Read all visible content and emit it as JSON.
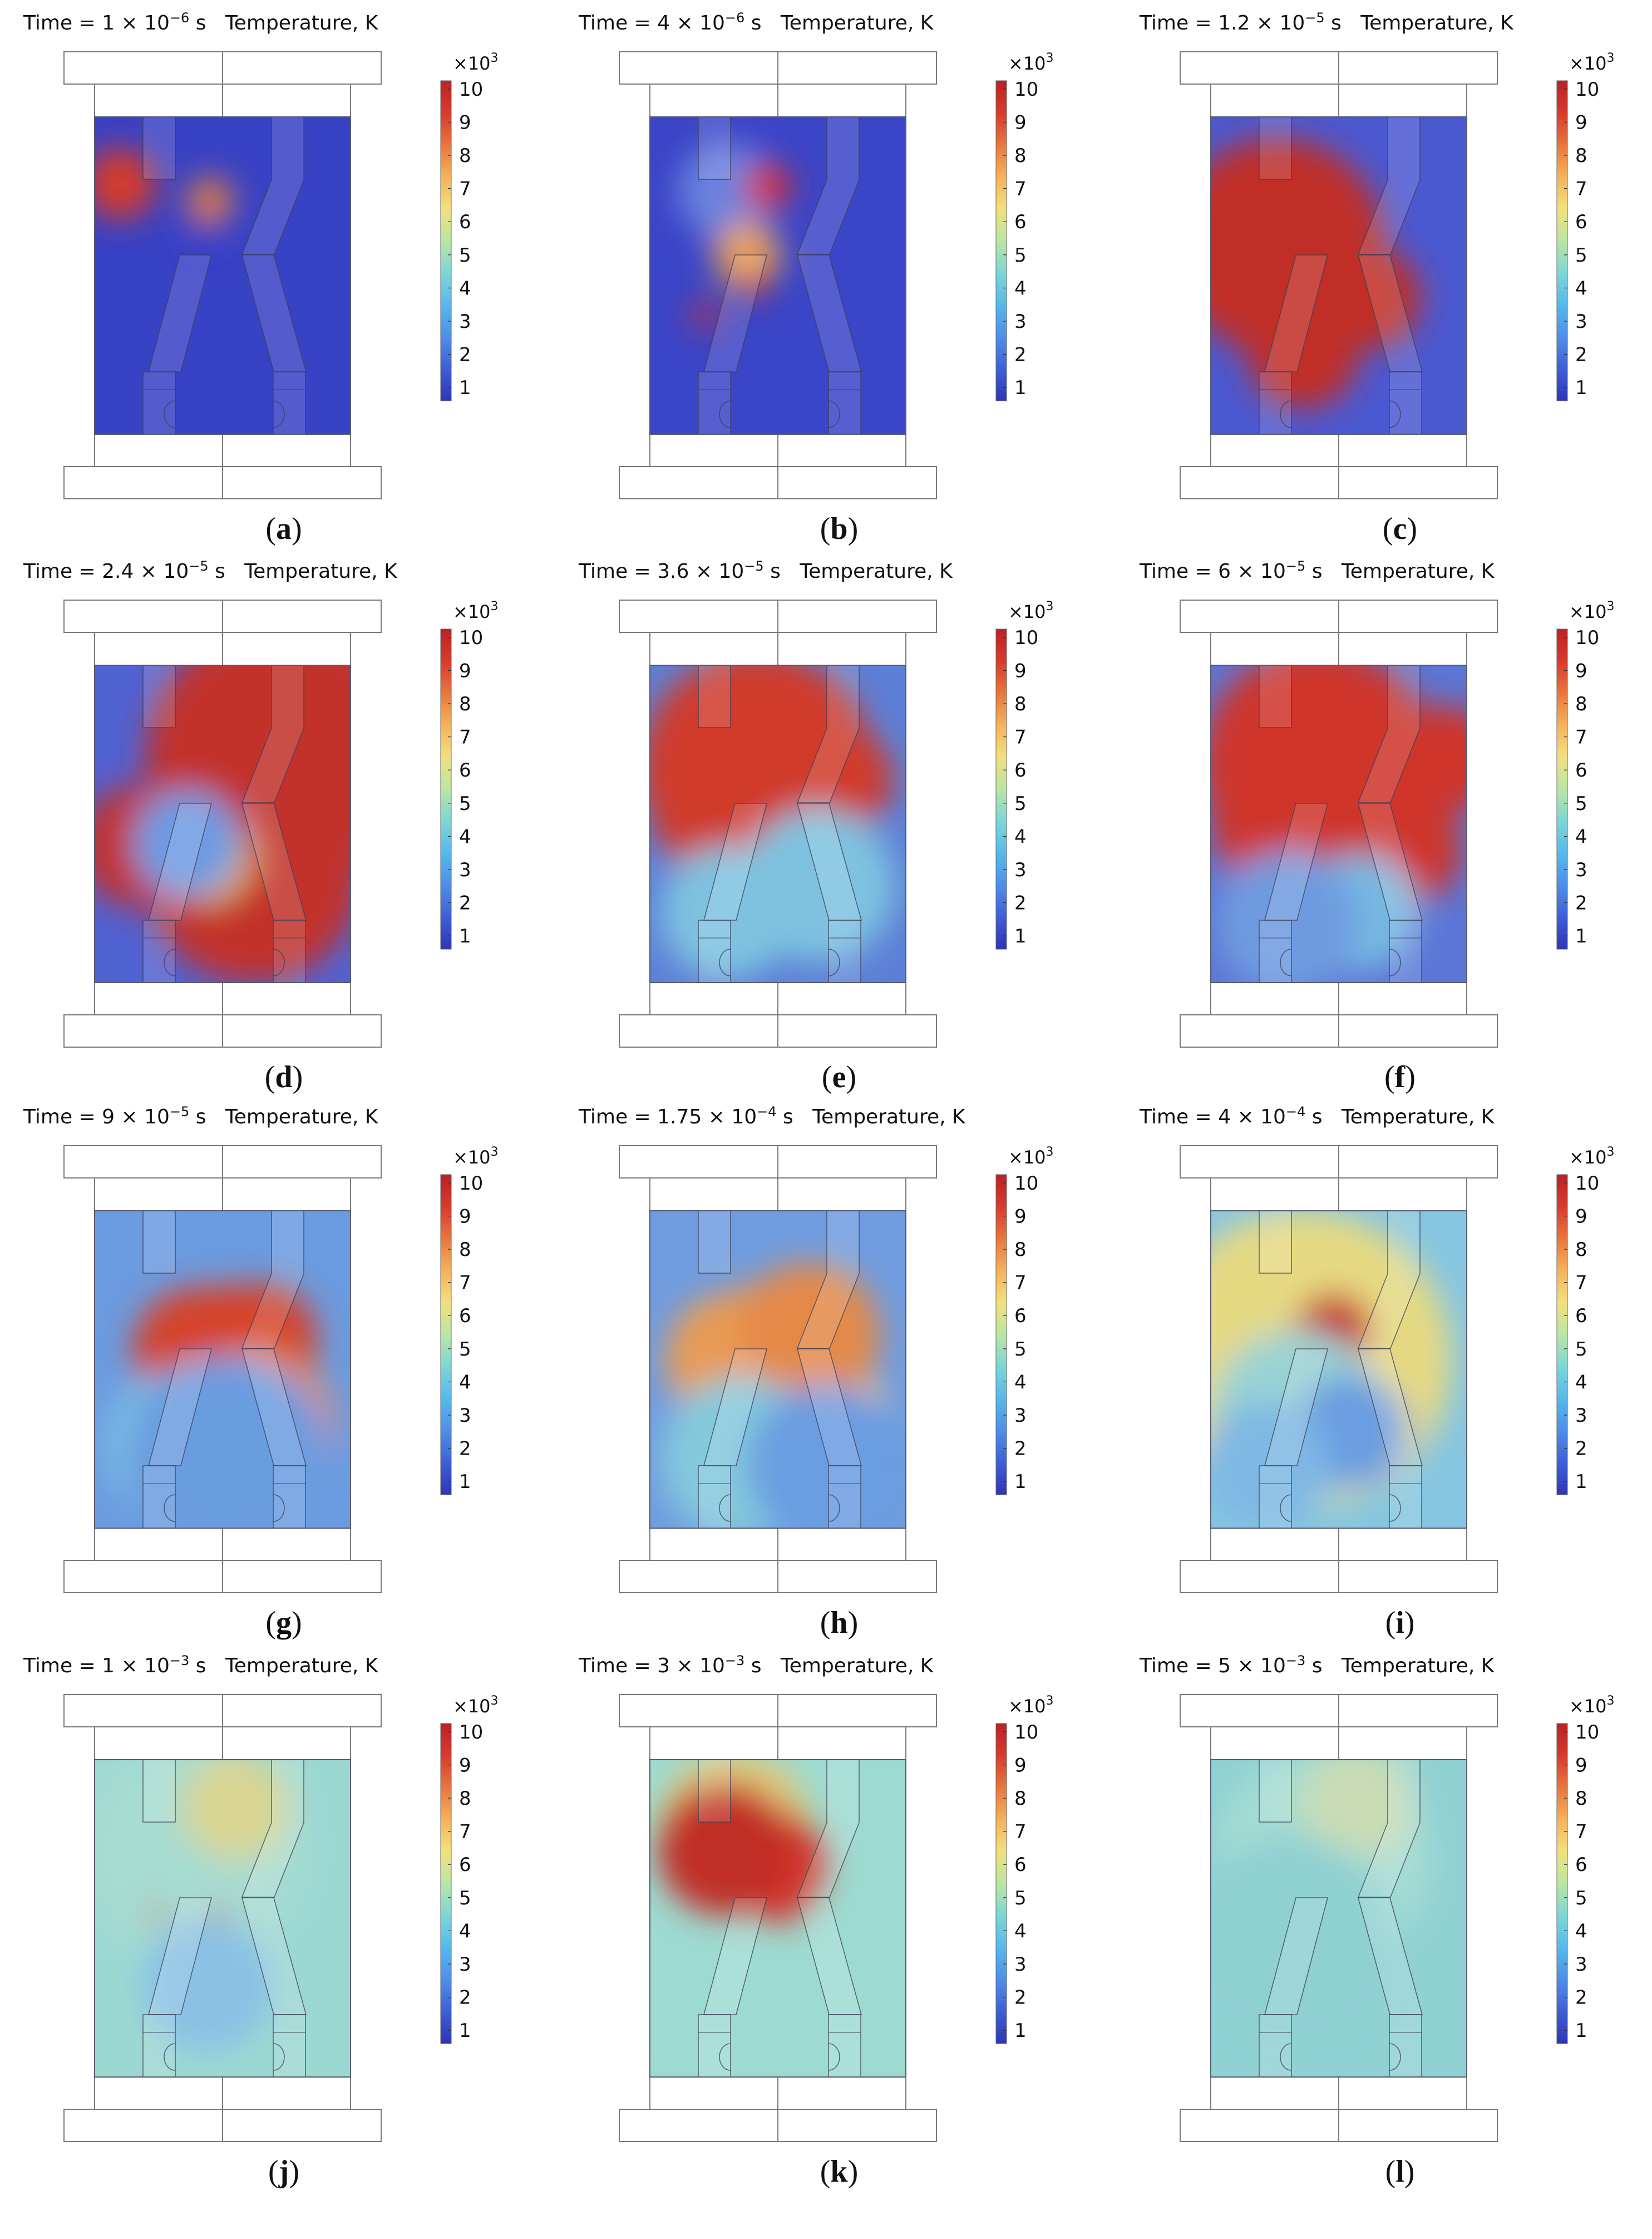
{
  "panels": [
    {
      "time_prefix": "Time = ",
      "time_mantissa": "1 × 10",
      "time_exponent": "−6",
      "time_unit": " s",
      "quantity": "Temperature, K",
      "label": "a",
      "pattern": [
        [
          10,
          27,
          14,
          "#d63a2c"
        ],
        [
          45,
          34,
          9,
          "#e37a45"
        ],
        [
          42,
          49,
          5,
          "#2c36c6"
        ]
      ]
    },
    {
      "time_prefix": "Time = ",
      "time_mantissa": "4 × 10",
      "time_exponent": "−6",
      "time_unit": " s",
      "quantity": "Temperature, K",
      "label": "b",
      "pattern": [
        [
          30,
          30,
          19,
          "#6b82de"
        ],
        [
          38,
          56,
          13,
          "#e8a156"
        ],
        [
          46,
          28,
          9,
          "#d92f26"
        ],
        [
          40,
          67,
          6,
          "#d92f26"
        ],
        [
          22,
          80,
          5,
          "#d92f26"
        ]
      ]
    },
    {
      "time_prefix": "Time = ",
      "time_mantissa": "1.2 × 10",
      "time_exponent": "−5",
      "time_unit": " s",
      "quantity": "Temperature, K",
      "label": "c",
      "pattern": [
        [
          26,
          52,
          42,
          "#c12d28"
        ],
        [
          36,
          95,
          22,
          "#c12d28"
        ],
        [
          62,
          73,
          20,
          "#c12d28"
        ],
        [
          24,
          84,
          14,
          "#c12d28"
        ]
      ]
    },
    {
      "time_prefix": "Time = ",
      "time_mantissa": "2.4 × 10",
      "time_exponent": "−5",
      "time_unit": " s",
      "quantity": "Temperature, K",
      "label": "d",
      "pattern": [
        [
          72,
          37,
          52,
          "#c2302a"
        ],
        [
          62,
          85,
          42,
          "#c2302a"
        ],
        [
          36,
          69,
          26,
          "#c2302a"
        ],
        [
          18,
          73,
          24,
          "#c2302a"
        ],
        [
          44,
          78,
          18,
          "#e3b05a"
        ],
        [
          36,
          72,
          21,
          "#6d9be2"
        ]
      ]
    },
    {
      "time_prefix": "Time = ",
      "time_mantissa": "3.6 × 10",
      "time_exponent": "−5",
      "time_unit": " s",
      "quantity": "Temperature, K",
      "label": "e",
      "pattern": [
        [
          42,
          42,
          46,
          "#d03a2c"
        ],
        [
          30,
          56,
          30,
          "#d03a2c"
        ],
        [
          75,
          46,
          20,
          "#d03a2c"
        ],
        [
          38,
          78,
          23,
          "#d03a2c"
        ],
        [
          30,
          100,
          26,
          "#7ec2e0"
        ],
        [
          66,
          89,
          30,
          "#7ec2e0"
        ]
      ]
    },
    {
      "time_prefix": "Time = ",
      "time_mantissa": "6 × 10",
      "time_exponent": "−5",
      "time_unit": " s",
      "quantity": "Temperature, K",
      "label": "f",
      "pattern": [
        [
          42,
          40,
          46,
          "#cf3629"
        ],
        [
          32,
          62,
          32,
          "#cf3629"
        ],
        [
          92,
          38,
          21,
          "#cf3629"
        ],
        [
          76,
          74,
          22,
          "#cf3629"
        ],
        [
          58,
          100,
          23,
          "#77b9e2"
        ],
        [
          30,
          104,
          28,
          "#6e9be0"
        ]
      ]
    },
    {
      "time_prefix": "Time = ",
      "time_mantissa": "9 × 10",
      "time_exponent": "−5",
      "time_unit": " s",
      "quantity": "Temperature, K",
      "label": "g",
      "pattern": [
        [
          52,
          65,
          34,
          "#d6422c"
        ],
        [
          40,
          57,
          25,
          "#d6422c"
        ],
        [
          65,
          52,
          22,
          "#d6422c"
        ],
        [
          62,
          88,
          32,
          "#e8894e"
        ],
        [
          34,
          95,
          30,
          "#7dc2e3"
        ],
        [
          52,
          100,
          40,
          "#6a9ce0"
        ]
      ]
    },
    {
      "time_prefix": "Time = ",
      "time_mantissa": "1.75 × 10",
      "time_exponent": "−4",
      "time_unit": " s",
      "quantity": "Temperature, K",
      "label": "h",
      "pattern": [
        [
          48,
          67,
          37,
          "#e89b55"
        ],
        [
          32,
          60,
          26,
          "#e89b55"
        ],
        [
          68,
          86,
          26,
          "#f0c863"
        ],
        [
          62,
          50,
          28,
          "#e5894a"
        ],
        [
          36,
          100,
          32,
          "#84c9dc"
        ],
        [
          70,
          103,
          32,
          "#6a9de1"
        ]
      ]
    },
    {
      "time_prefix": "Time = ",
      "time_mantissa": "4 × 10",
      "time_exponent": "−4",
      "time_unit": " s",
      "quantity": "Temperature, K",
      "label": "i",
      "pattern": [
        [
          36,
          60,
          58,
          "#e6d982"
        ],
        [
          48,
          49,
          15,
          "#c52d2a"
        ],
        [
          34,
          83,
          34,
          "#99d3d4"
        ],
        [
          55,
          89,
          22,
          "#6a9de1"
        ],
        [
          21,
          103,
          25,
          "#7fb8e4"
        ]
      ]
    },
    {
      "time_prefix": "Time = ",
      "time_mantissa": "1 × 10",
      "time_exponent": "−3",
      "time_unit": " s",
      "quantity": "Temperature, K",
      "label": "j",
      "pattern": [
        [
          38,
          36,
          43,
          "#a6dcd1"
        ],
        [
          55,
          19,
          21,
          "#d8d592"
        ],
        [
          44,
          91,
          26,
          "#8ac1e5"
        ],
        [
          24,
          62,
          3,
          "#d92f26"
        ],
        [
          49,
          62,
          3,
          "#d92f26"
        ]
      ]
    },
    {
      "time_prefix": "Time = ",
      "time_mantissa": "3 × 10",
      "time_exponent": "−3",
      "time_unit": " s",
      "quantity": "Temperature, K",
      "label": "k",
      "pattern": [
        [
          33,
          28,
          30,
          "#e1c877"
        ],
        [
          48,
          42,
          21,
          "#d43529"
        ],
        [
          29,
          36,
          26,
          "#c12d28"
        ],
        [
          52,
          62,
          5,
          "#d92f26"
        ]
      ]
    },
    {
      "time_prefix": "Time = ",
      "time_mantissa": "5 × 10",
      "time_exponent": "−3",
      "time_unit": " s",
      "quantity": "Temperature, K",
      "label": "l",
      "pattern": [
        [
          44,
          40,
          42,
          "#a5dcd2"
        ],
        [
          57,
          17,
          22,
          "#c9dcb5"
        ],
        [
          32,
          70,
          38,
          "#8fd0d3"
        ]
      ]
    }
  ],
  "backgrounds": [
    "#3842c5",
    "#3b45c7",
    "#4b59d1",
    "#5162d3",
    "#5c80d7",
    "#5c76d6",
    "#6b9be0",
    "#6f9ce0",
    "#86c6e0",
    "#9cd8d2",
    "#9ddbd1",
    "#90d1d4"
  ],
  "labels": {
    "open": "(",
    "close": ")"
  },
  "colorbar": {
    "multiplier": "×10",
    "multiplier_exp": "3",
    "ticks": [
      "1",
      "2",
      "3",
      "4",
      "5",
      "6",
      "7",
      "8",
      "9",
      "10"
    ],
    "colors": [
      "#2f35b4",
      "#3e5fd6",
      "#4f8ee8",
      "#56b9eb",
      "#7dd6d6",
      "#b9e6a3",
      "#f2e07e",
      "#f5b25a",
      "#e7763f",
      "#d73a2d",
      "#b92326"
    ]
  }
}
